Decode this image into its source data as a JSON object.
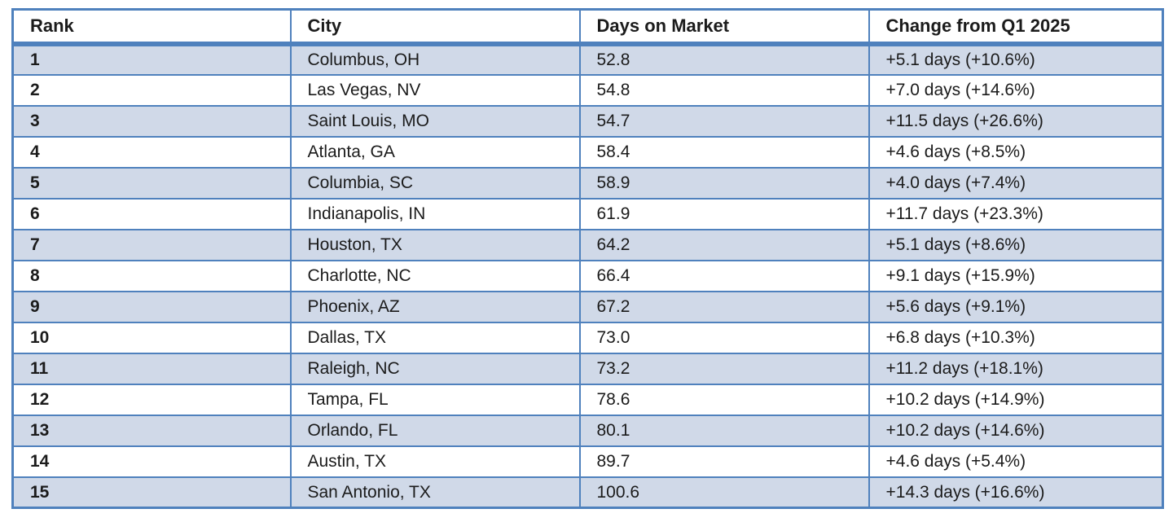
{
  "colors": {
    "border": "#4f81bd",
    "band": "#d0d9e8",
    "text": "#1b1b1b",
    "background": "#ffffff"
  },
  "chart_data": {
    "type": "table",
    "title": "",
    "columns": [
      "Rank",
      "City",
      "Days on Market",
      "Change from Q1 2025"
    ],
    "rows": [
      {
        "rank": 1,
        "city": "Columbus, OH",
        "days": "52.8",
        "days_value": 52.8,
        "change": "+5.1 days (+10.6%)",
        "change_days": 5.1,
        "change_pct": 10.6
      },
      {
        "rank": 2,
        "city": "Las Vegas, NV",
        "days": "54.8",
        "days_value": 54.8,
        "change": "+7.0 days (+14.6%)",
        "change_days": 7.0,
        "change_pct": 14.6
      },
      {
        "rank": 3,
        "city": "Saint Louis, MO",
        "days": "54.7",
        "days_value": 54.7,
        "change": "+11.5 days (+26.6%)",
        "change_days": 11.5,
        "change_pct": 26.6
      },
      {
        "rank": 4,
        "city": "Atlanta, GA",
        "days": "58.4",
        "days_value": 58.4,
        "change": "+4.6 days (+8.5%)",
        "change_days": 4.6,
        "change_pct": 8.5
      },
      {
        "rank": 5,
        "city": "Columbia, SC",
        "days": "58.9",
        "days_value": 58.9,
        "change": "+4.0 days (+7.4%)",
        "change_days": 4.0,
        "change_pct": 7.4
      },
      {
        "rank": 6,
        "city": "Indianapolis, IN",
        "days": "61.9",
        "days_value": 61.9,
        "change": "+11.7 days (+23.3%)",
        "change_days": 11.7,
        "change_pct": 23.3
      },
      {
        "rank": 7,
        "city": "Houston, TX",
        "days": "64.2",
        "days_value": 64.2,
        "change": "+5.1 days (+8.6%)",
        "change_days": 5.1,
        "change_pct": 8.6
      },
      {
        "rank": 8,
        "city": "Charlotte, NC",
        "days": "66.4",
        "days_value": 66.4,
        "change": "+9.1 days (+15.9%)",
        "change_days": 9.1,
        "change_pct": 15.9
      },
      {
        "rank": 9,
        "city": "Phoenix, AZ",
        "days": "67.2",
        "days_value": 67.2,
        "change": "+5.6 days (+9.1%)",
        "change_days": 5.6,
        "change_pct": 9.1
      },
      {
        "rank": 10,
        "city": "Dallas, TX",
        "days": "73.0",
        "days_value": 73.0,
        "change": "+6.8 days (+10.3%)",
        "change_days": 6.8,
        "change_pct": 10.3
      },
      {
        "rank": 11,
        "city": "Raleigh, NC",
        "days": "73.2",
        "days_value": 73.2,
        "change": "+11.2 days (+18.1%)",
        "change_days": 11.2,
        "change_pct": 18.1
      },
      {
        "rank": 12,
        "city": "Tampa, FL",
        "days": "78.6",
        "days_value": 78.6,
        "change": "+10.2 days (+14.9%)",
        "change_days": 10.2,
        "change_pct": 14.9
      },
      {
        "rank": 13,
        "city": "Orlando, FL",
        "days": "80.1",
        "days_value": 80.1,
        "change": "+10.2 days (+14.6%)",
        "change_days": 10.2,
        "change_pct": 14.6
      },
      {
        "rank": 14,
        "city": "Austin, TX",
        "days": "89.7",
        "days_value": 89.7,
        "change": "+4.6 days (+5.4%)",
        "change_days": 4.6,
        "change_pct": 5.4
      },
      {
        "rank": 15,
        "city": "San Antonio, TX",
        "days": "100.6",
        "days_value": 100.6,
        "change": "+14.3 days (+16.6%)",
        "change_days": 14.3,
        "change_pct": 16.6
      }
    ]
  }
}
